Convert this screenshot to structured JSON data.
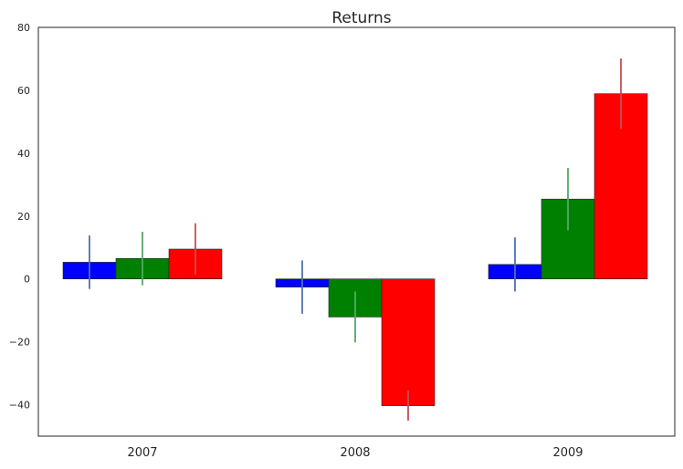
{
  "chart_data": {
    "type": "bar",
    "title": "Returns",
    "xlabel": "",
    "ylabel": "",
    "categories": [
      "2007",
      "2008",
      "2009"
    ],
    "ylim": [
      -50,
      80
    ],
    "yticks": [
      -40,
      -20,
      0,
      20,
      40,
      60,
      80
    ],
    "ytick_labels": [
      "−40",
      "−20",
      "0",
      "20",
      "40",
      "60",
      "80"
    ],
    "grid": false,
    "legend": "none",
    "series": [
      {
        "color": "#0000ff",
        "error_color": "#4c72b0",
        "values": [
          5.3,
          -2.6,
          4.6
        ],
        "errors": [
          8.5,
          8.5,
          8.6
        ]
      },
      {
        "color": "#008000",
        "error_color": "#55a868",
        "values": [
          6.5,
          -12.1,
          25.4
        ],
        "errors": [
          8.5,
          8.1,
          9.9
        ]
      },
      {
        "color": "#ff0000",
        "error_color": "#c44e52",
        "values": [
          9.5,
          -40.3,
          58.9
        ],
        "errors": [
          8.2,
          4.8,
          11.2
        ]
      }
    ]
  }
}
